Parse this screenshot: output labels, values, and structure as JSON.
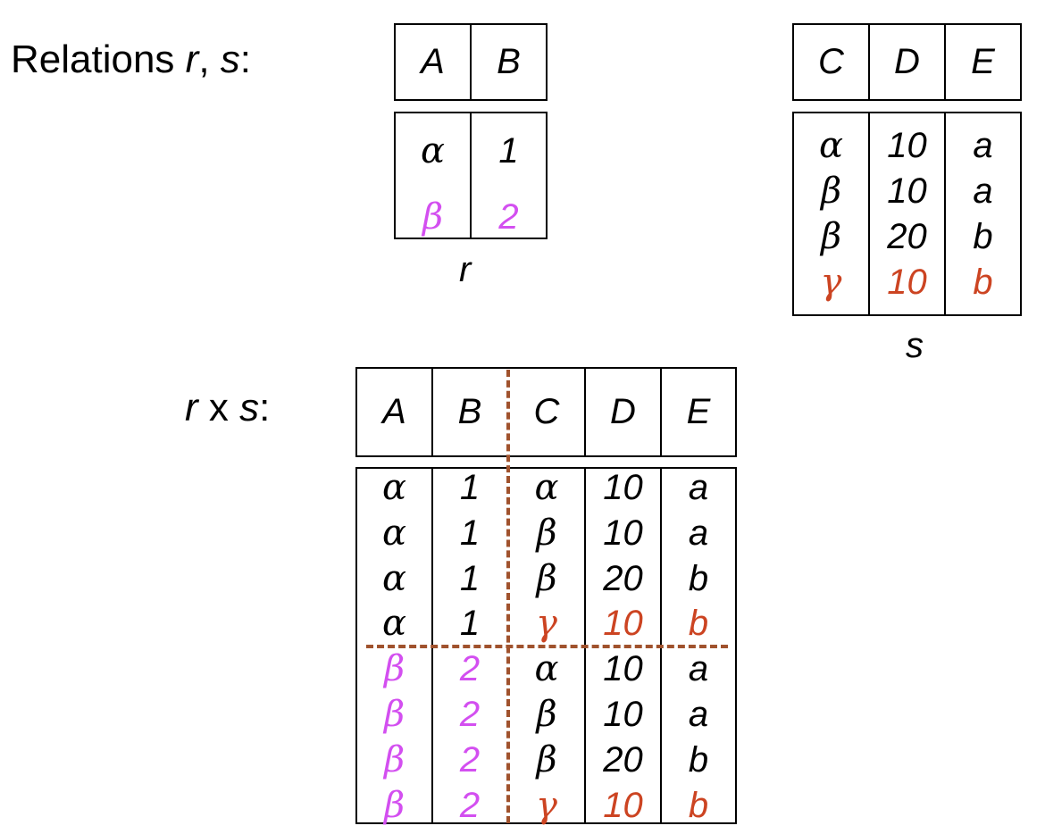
{
  "colors": {
    "text": "#000000",
    "magenta": "#d34ff0",
    "orange": "#cc4422",
    "divider": "#a0522d"
  },
  "labels": {
    "relations_prefix": "Relations ",
    "r": "r",
    "comma": ", ",
    "s": "s",
    "colon": ":",
    "r_caption": "r",
    "s_caption": "s",
    "product_r": "r",
    "product_x": " x ",
    "product_s": "s",
    "product_colon": ":"
  },
  "relation_r": {
    "headers": [
      "A",
      "B"
    ],
    "rows": [
      {
        "color": "black",
        "values": [
          "α",
          "1"
        ]
      },
      {
        "color": "magenta",
        "values": [
          "β",
          "2"
        ]
      }
    ]
  },
  "relation_s": {
    "headers": [
      "C",
      "D",
      "E"
    ],
    "rows": [
      {
        "color": "black",
        "values": [
          "α",
          "10",
          "a"
        ]
      },
      {
        "color": "black",
        "values": [
          "β",
          "10",
          "a"
        ]
      },
      {
        "color": "black",
        "values": [
          "β",
          "20",
          "b"
        ]
      },
      {
        "color": "orange",
        "values": [
          "γ",
          "10",
          "b"
        ]
      }
    ]
  },
  "product": {
    "headers": [
      "A",
      "B",
      "C",
      "D",
      "E"
    ],
    "rows": [
      {
        "colors": [
          "black",
          "black",
          "black",
          "black",
          "black"
        ],
        "values": [
          "α",
          "1",
          "α",
          "10",
          "a"
        ]
      },
      {
        "colors": [
          "black",
          "black",
          "black",
          "black",
          "black"
        ],
        "values": [
          "α",
          "1",
          "β",
          "10",
          "a"
        ]
      },
      {
        "colors": [
          "black",
          "black",
          "black",
          "black",
          "black"
        ],
        "values": [
          "α",
          "1",
          "β",
          "20",
          "b"
        ]
      },
      {
        "colors": [
          "black",
          "black",
          "orange",
          "orange",
          "orange"
        ],
        "values": [
          "α",
          "1",
          "γ",
          "10",
          "b"
        ]
      },
      {
        "colors": [
          "magenta",
          "magenta",
          "black",
          "black",
          "black"
        ],
        "values": [
          "β",
          "2",
          "α",
          "10",
          "a"
        ]
      },
      {
        "colors": [
          "magenta",
          "magenta",
          "black",
          "black",
          "black"
        ],
        "values": [
          "β",
          "2",
          "β",
          "10",
          "a"
        ]
      },
      {
        "colors": [
          "magenta",
          "magenta",
          "black",
          "black",
          "black"
        ],
        "values": [
          "β",
          "2",
          "β",
          "20",
          "b"
        ]
      },
      {
        "colors": [
          "magenta",
          "magenta",
          "orange",
          "orange",
          "orange"
        ],
        "values": [
          "β",
          "2",
          "γ",
          "10",
          "b"
        ]
      }
    ]
  }
}
